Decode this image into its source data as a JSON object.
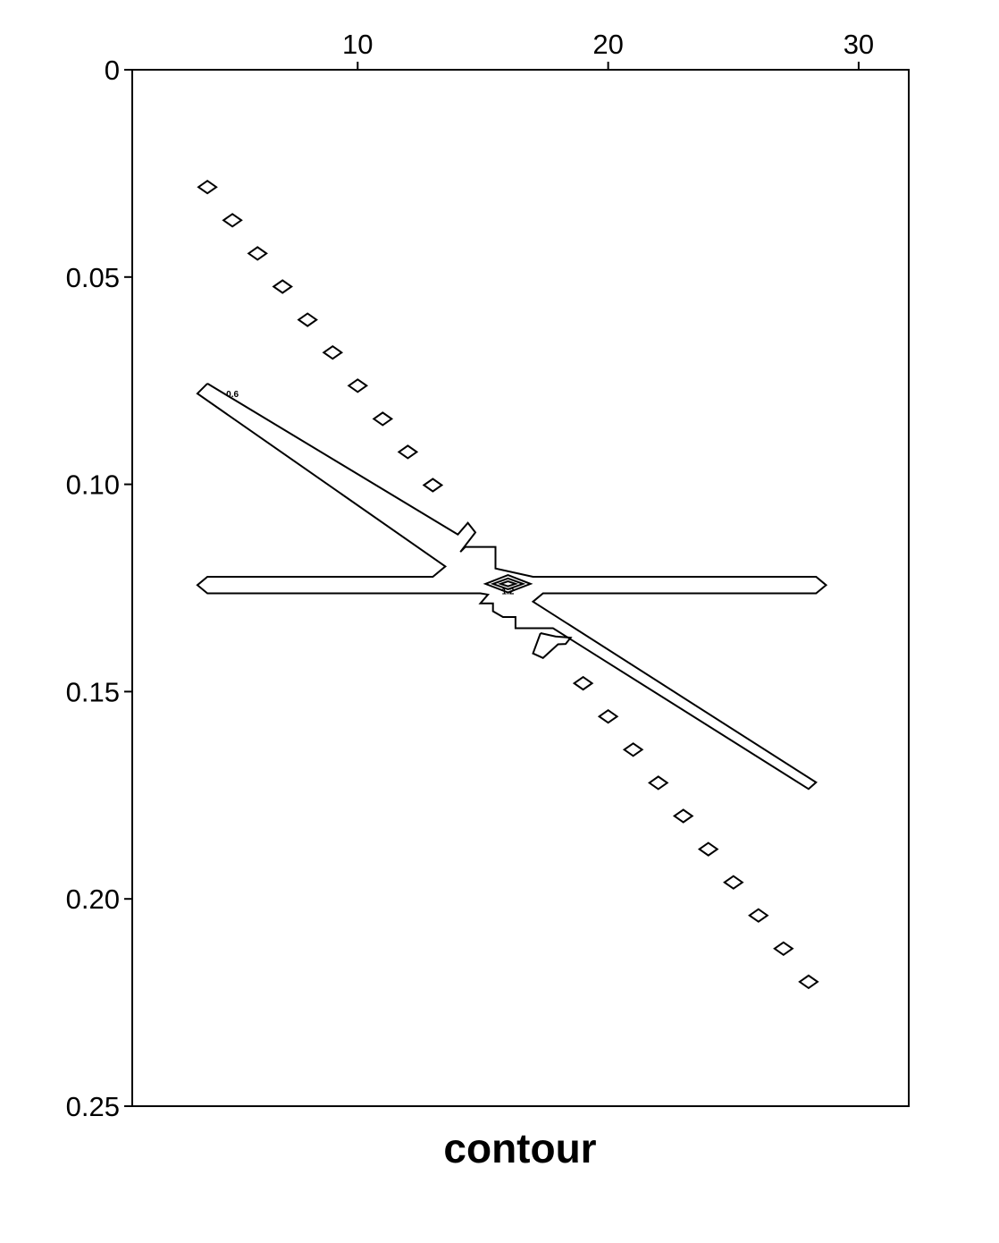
{
  "chart_data": {
    "type": "contour",
    "title": "contour",
    "xlabel": "",
    "ylabel": "",
    "x_axis_position": "top",
    "y_axis_direction": "down",
    "xlim": [
      1,
      32
    ],
    "ylim": [
      0,
      0.25
    ],
    "x_ticks": [
      {
        "value": 10,
        "label": "10"
      },
      {
        "value": 20,
        "label": "20"
      },
      {
        "value": 30,
        "label": "30"
      }
    ],
    "y_ticks": [
      {
        "value": 0,
        "label": "0"
      },
      {
        "value": 0.05,
        "label": "0.05"
      },
      {
        "value": 0.1,
        "label": "0.10"
      },
      {
        "value": 0.15,
        "label": "0.15"
      },
      {
        "value": 0.2,
        "label": "0.20"
      },
      {
        "value": 0.25,
        "label": "0.25"
      }
    ],
    "grid": false,
    "contour_labels": [
      {
        "text": "0.6",
        "x": 5,
        "y": 0.079
      },
      {
        "text": "1.2",
        "x": 16,
        "y": 0.1265
      }
    ],
    "diamond_centers": [
      {
        "x": 4,
        "y": 0.0283
      },
      {
        "x": 5,
        "y": 0.0363
      },
      {
        "x": 6,
        "y": 0.0443
      },
      {
        "x": 7,
        "y": 0.0523
      },
      {
        "x": 8,
        "y": 0.0603
      },
      {
        "x": 9,
        "y": 0.0682
      },
      {
        "x": 10,
        "y": 0.0762
      },
      {
        "x": 11,
        "y": 0.0842
      },
      {
        "x": 12,
        "y": 0.0922
      },
      {
        "x": 13,
        "y": 0.1002
      },
      {
        "x": 19,
        "y": 0.148
      },
      {
        "x": 20,
        "y": 0.156
      },
      {
        "x": 21,
        "y": 0.164
      },
      {
        "x": 22,
        "y": 0.172
      },
      {
        "x": 23,
        "y": 0.18
      },
      {
        "x": 24,
        "y": 0.188
      },
      {
        "x": 25,
        "y": 0.196
      },
      {
        "x": 26,
        "y": 0.204
      },
      {
        "x": 27,
        "y": 0.212
      },
      {
        "x": 28,
        "y": 0.22
      }
    ],
    "center_rings": [
      {
        "x": 16,
        "y": 0.124,
        "dx": 0.9,
        "dy": 0.0021
      },
      {
        "x": 16,
        "y": 0.124,
        "dx": 0.6,
        "dy": 0.0013
      },
      {
        "x": 16,
        "y": 0.124,
        "dx": 0.3,
        "dy": 0.0006
      }
    ],
    "contours": [
      {
        "name": "upper-branch-ring",
        "points": [
          [
            4,
            0.0757
          ],
          [
            14,
            0.1121
          ],
          [
            14.4,
            0.1093
          ],
          [
            14.7,
            0.1116
          ],
          [
            14.1,
            0.1163
          ],
          [
            14.3,
            0.1151
          ],
          [
            15.5,
            0.1151
          ],
          [
            15.5,
            0.1203
          ],
          [
            17,
            0.1223
          ],
          [
            28.3,
            0.1223
          ],
          [
            28.7,
            0.1243
          ],
          [
            28.3,
            0.1263
          ],
          [
            17.4,
            0.1263
          ],
          [
            17,
            0.1283
          ],
          [
            28.3,
            0.1719
          ],
          [
            28,
            0.1735
          ],
          [
            17.8,
            0.1347
          ],
          [
            16.3,
            0.1347
          ],
          [
            16.3,
            0.132
          ],
          [
            15.8,
            0.132
          ],
          [
            15.4,
            0.1306
          ],
          [
            15.4,
            0.1287
          ],
          [
            14.9,
            0.1287
          ],
          [
            15.2,
            0.1266
          ],
          [
            14.9,
            0.1263
          ],
          [
            4,
            0.1263
          ],
          [
            3.6,
            0.1243
          ],
          [
            4,
            0.1223
          ],
          [
            13,
            0.1223
          ],
          [
            13.5,
            0.1198
          ],
          [
            3.6,
            0.0781
          ],
          [
            4,
            0.0757
          ]
        ]
      },
      {
        "name": "lower-notch",
        "points": [
          [
            17.3,
            0.1359
          ],
          [
            17.9,
            0.1367
          ],
          [
            18.5,
            0.137
          ],
          [
            18.3,
            0.1385
          ],
          [
            18,
            0.1386
          ],
          [
            17.4,
            0.1419
          ],
          [
            17.0,
            0.1408
          ],
          [
            17.3,
            0.1359
          ]
        ]
      }
    ]
  }
}
